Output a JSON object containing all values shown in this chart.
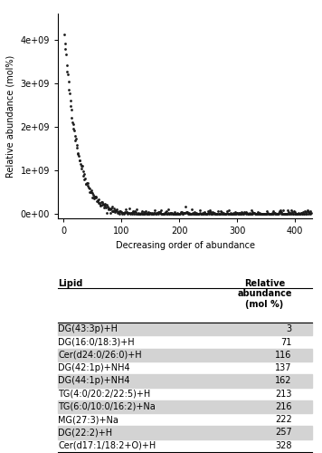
{
  "scatter_n": 428,
  "scatter_curve_scale": 4300000000.0,
  "scatter_curve_decay": 0.045,
  "xlabel": "Decreasing order of abundance",
  "ylabel": "Relative abundance (mol%)",
  "xlim": [
    -10,
    430
  ],
  "ylim": [
    -100000000.0,
    4600000000.0
  ],
  "yticks": [
    0,
    1000000000.0,
    2000000000.0,
    3000000000.0,
    4000000000.0
  ],
  "ytick_labels": [
    "0e+00",
    "1e+09",
    "2e+09",
    "3e+09",
    "4e+09"
  ],
  "xticks": [
    0,
    100,
    200,
    300,
    400
  ],
  "dot_color": "#1a1a1a",
  "dot_size": 4,
  "table_lipids": [
    "DG(43:3p)+H",
    "DG(16:0/18:3)+H",
    "Cer(d24:0/26:0)+H",
    "DG(42:1p)+NH4",
    "DG(44:1p)+NH4",
    "TG(4:0/20:2/22:5)+H",
    "TG(6:0/10:0/16:2)+Na",
    "MG(27:3)+Na",
    "DG(22:2)+H",
    "Cer(d17:1/18:2+O)+H"
  ],
  "table_values": [
    3,
    71,
    116,
    137,
    162,
    213,
    216,
    222,
    257,
    328
  ],
  "table_col1_header": "Lipid",
  "table_col2_header": "Relative\nabundance\n(mol %)",
  "shaded_rows": [
    0,
    2,
    4,
    6,
    8
  ],
  "shade_color": "#d3d3d3",
  "bg_color": "#ffffff",
  "font_size_axis": 7,
  "font_size_tick": 7,
  "font_size_table": 7
}
